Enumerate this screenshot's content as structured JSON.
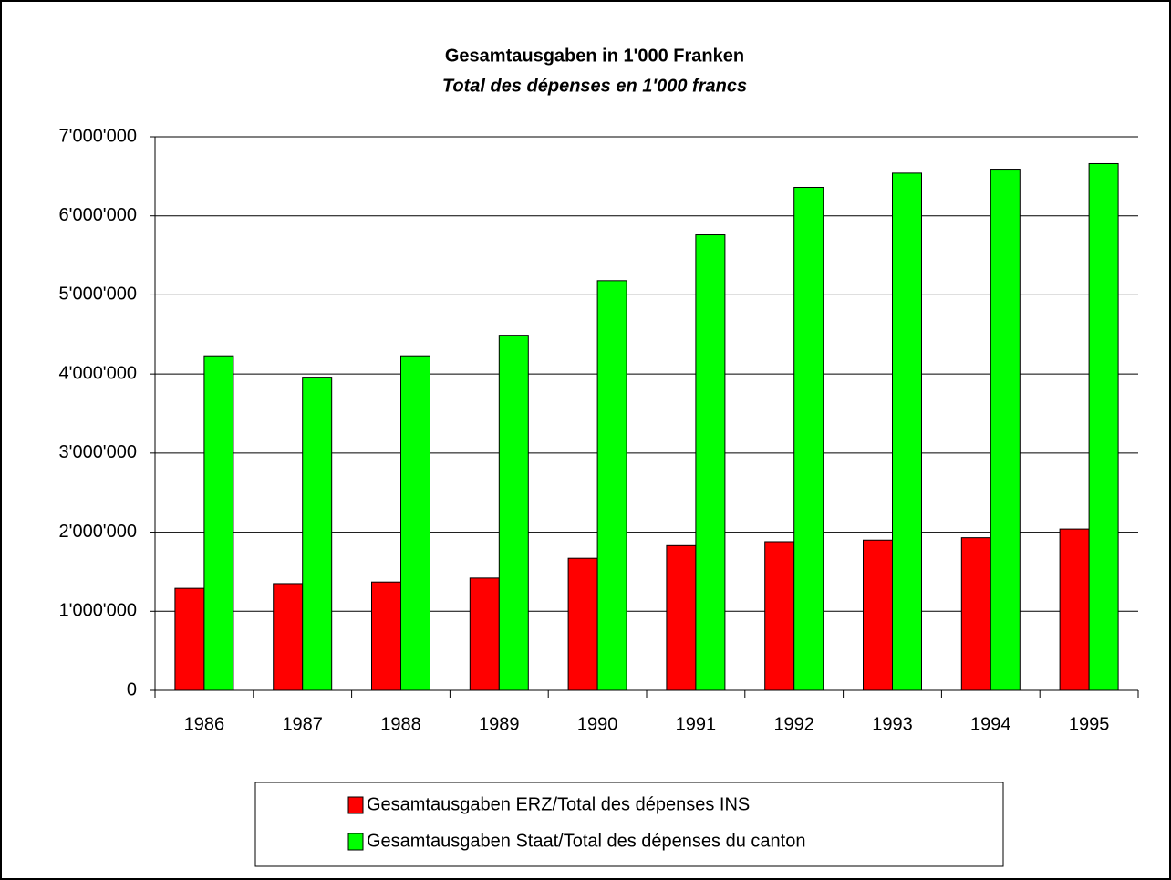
{
  "chart_data": {
    "type": "bar",
    "title": "Gesamtausgaben in 1'000 Franken",
    "subtitle": "Total des dépenses en 1'000 francs",
    "categories": [
      "1986",
      "1987",
      "1988",
      "1989",
      "1990",
      "1991",
      "1992",
      "1993",
      "1994",
      "1995"
    ],
    "series": [
      {
        "name": "Gesamtausgaben ERZ/Total des dépenses INS",
        "color": "#ff0000",
        "values": [
          1290000,
          1350000,
          1370000,
          1420000,
          1670000,
          1830000,
          1880000,
          1900000,
          1930000,
          2040000
        ]
      },
      {
        "name": "Gesamtausgaben Staat/Total des dépenses du canton",
        "color": "#00ff00",
        "values": [
          4230000,
          3960000,
          4230000,
          4490000,
          5180000,
          5760000,
          6360000,
          6540000,
          6590000,
          6660000
        ]
      }
    ],
    "ylim": [
      0,
      7000000
    ],
    "yticks": [
      0,
      {
        "value": 1000000,
        "label": "1'000'000"
      },
      {
        "value": 2000000,
        "label": "2'000'000"
      },
      {
        "value": 3000000,
        "label": "3'000'000"
      },
      {
        "value": 4000000,
        "label": "4'000'000"
      },
      {
        "value": 5000000,
        "label": "5'000'000"
      },
      {
        "value": 6000000,
        "label": "6'000'000"
      },
      {
        "value": 7000000,
        "label": "7'000'000"
      }
    ],
    "grid": true,
    "legend": "bottom"
  }
}
